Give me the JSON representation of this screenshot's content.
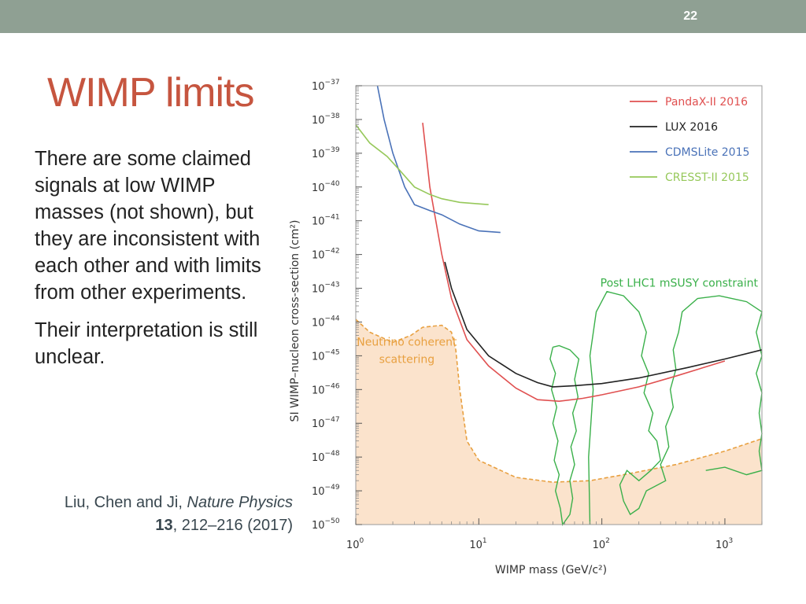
{
  "slide": {
    "number": "22",
    "title": "WIMP limits"
  },
  "body": {
    "paragraph1": "There are some claimed signals at low WIMP masses (not shown), but they are inconsistent with each other and with limits from other experiments.",
    "paragraph2": "Their interpretation is still unclear."
  },
  "citation": {
    "authors": "Liu, Chen and Ji,",
    "journal": "Nature Physics",
    "volume": "13",
    "pages": ", 212–216 (2017)"
  },
  "colors": {
    "topbar": "#8fa093",
    "title": "#c6553f",
    "pandax": "#e05050",
    "lux": "#222222",
    "cdms": "#4a72b8",
    "cresst": "#96c85a",
    "neutrino": "#e8a040",
    "neutrino_fill": "#fbe3cc",
    "susy": "#3ab04a"
  },
  "chart_data": {
    "type": "line",
    "x_scale": "log",
    "y_scale": "log",
    "xlim": [
      1,
      2000
    ],
    "ylim": [
      1e-50,
      1e-37
    ],
    "xlabel": "WIMP mass (GeV/c²)",
    "ylabel": "SI WIMP–nucleon cross-section (cm²)",
    "x_ticks": [
      {
        "value": 1,
        "base": "10",
        "exp": "0"
      },
      {
        "value": 10,
        "base": "10",
        "exp": "1"
      },
      {
        "value": 100,
        "base": "10",
        "exp": "2"
      },
      {
        "value": 1000,
        "base": "10",
        "exp": "3"
      }
    ],
    "y_ticks": [
      {
        "exp_value": -37,
        "base": "10",
        "exp": "−37"
      },
      {
        "exp_value": -38,
        "base": "10",
        "exp": "−38"
      },
      {
        "exp_value": -39,
        "base": "10",
        "exp": "−39"
      },
      {
        "exp_value": -40,
        "base": "10",
        "exp": "−40"
      },
      {
        "exp_value": -41,
        "base": "10",
        "exp": "−41"
      },
      {
        "exp_value": -42,
        "base": "10",
        "exp": "−42"
      },
      {
        "exp_value": -43,
        "base": "10",
        "exp": "−43"
      },
      {
        "exp_value": -44,
        "base": "10",
        "exp": "−44"
      },
      {
        "exp_value": -45,
        "base": "10",
        "exp": "−45"
      },
      {
        "exp_value": -46,
        "base": "10",
        "exp": "−46"
      },
      {
        "exp_value": -47,
        "base": "10",
        "exp": "−47"
      },
      {
        "exp_value": -48,
        "base": "10",
        "exp": "−48"
      },
      {
        "exp_value": -49,
        "base": "10",
        "exp": "−49"
      },
      {
        "exp_value": -50,
        "base": "10",
        "exp": "−50"
      }
    ],
    "legend_position": "top-right",
    "series": [
      {
        "name": "PandaX-II 2016",
        "color": "#e05050",
        "points": [
          [
            3.5,
            8e-39
          ],
          [
            4,
            1e-40
          ],
          [
            5,
            1e-42
          ],
          [
            6,
            5e-44
          ],
          [
            8,
            3e-45
          ],
          [
            12,
            5e-46
          ],
          [
            20,
            1.1e-46
          ],
          [
            30,
            5e-47
          ],
          [
            45,
            4.5e-47
          ],
          [
            70,
            5.5e-47
          ],
          [
            100,
            7e-47
          ],
          [
            200,
            1.2e-46
          ],
          [
            400,
            2.5e-46
          ],
          [
            1000,
            7e-46
          ]
        ]
      },
      {
        "name": "LUX 2016",
        "color": "#222222",
        "points": [
          [
            5.3,
            6e-43
          ],
          [
            6,
            1e-43
          ],
          [
            8,
            6e-45
          ],
          [
            12,
            1e-45
          ],
          [
            20,
            3e-46
          ],
          [
            30,
            1.6e-46
          ],
          [
            40,
            1.2e-46
          ],
          [
            60,
            1.3e-46
          ],
          [
            100,
            1.5e-46
          ],
          [
            200,
            2.2e-46
          ],
          [
            500,
            4.5e-46
          ],
          [
            1000,
            8e-46
          ],
          [
            2000,
            1.5e-45
          ]
        ]
      },
      {
        "name": "CDMSLite 2015",
        "color": "#4a72b8",
        "points": [
          [
            1.5,
            1e-37
          ],
          [
            1.7,
            1e-38
          ],
          [
            2,
            1e-39
          ],
          [
            2.5,
            1e-40
          ],
          [
            3,
            3e-41
          ],
          [
            4,
            2e-41
          ],
          [
            5,
            1.5e-41
          ],
          [
            7,
            8e-42
          ],
          [
            10,
            5e-42
          ],
          [
            15,
            4.5e-42
          ]
        ]
      },
      {
        "name": "CRESST-II 2015",
        "color": "#96c85a",
        "points": [
          [
            1,
            7e-39
          ],
          [
            1.3,
            2e-39
          ],
          [
            1.8,
            8e-40
          ],
          [
            2.3,
            3e-40
          ],
          [
            3,
            1e-40
          ],
          [
            4,
            6e-41
          ],
          [
            5,
            4.5e-41
          ],
          [
            7,
            3.5e-41
          ],
          [
            12,
            3e-41
          ]
        ]
      }
    ],
    "annotations": [
      {
        "label": "Neutrino coherent",
        "label2": "scattering"
      },
      {
        "label": "Post LHC1 mSUSY constraint"
      }
    ],
    "neutrino_floor": [
      [
        1,
        1.2e-44
      ],
      [
        1.3,
        5e-45
      ],
      [
        2,
        2.5e-45
      ],
      [
        2.8,
        4e-45
      ],
      [
        3.5,
        7e-45
      ],
      [
        5,
        8e-45
      ],
      [
        6,
        5e-45
      ],
      [
        6.5,
        1.5e-45
      ],
      [
        7,
        1e-46
      ],
      [
        8,
        3e-48
      ],
      [
        10,
        8e-49
      ],
      [
        20,
        2.5e-49
      ],
      [
        40,
        1.8e-49
      ],
      [
        80,
        2e-49
      ],
      [
        150,
        3e-49
      ],
      [
        400,
        6e-49
      ],
      [
        1000,
        1.5e-48
      ],
      [
        2000,
        3.5e-48
      ]
    ]
  }
}
